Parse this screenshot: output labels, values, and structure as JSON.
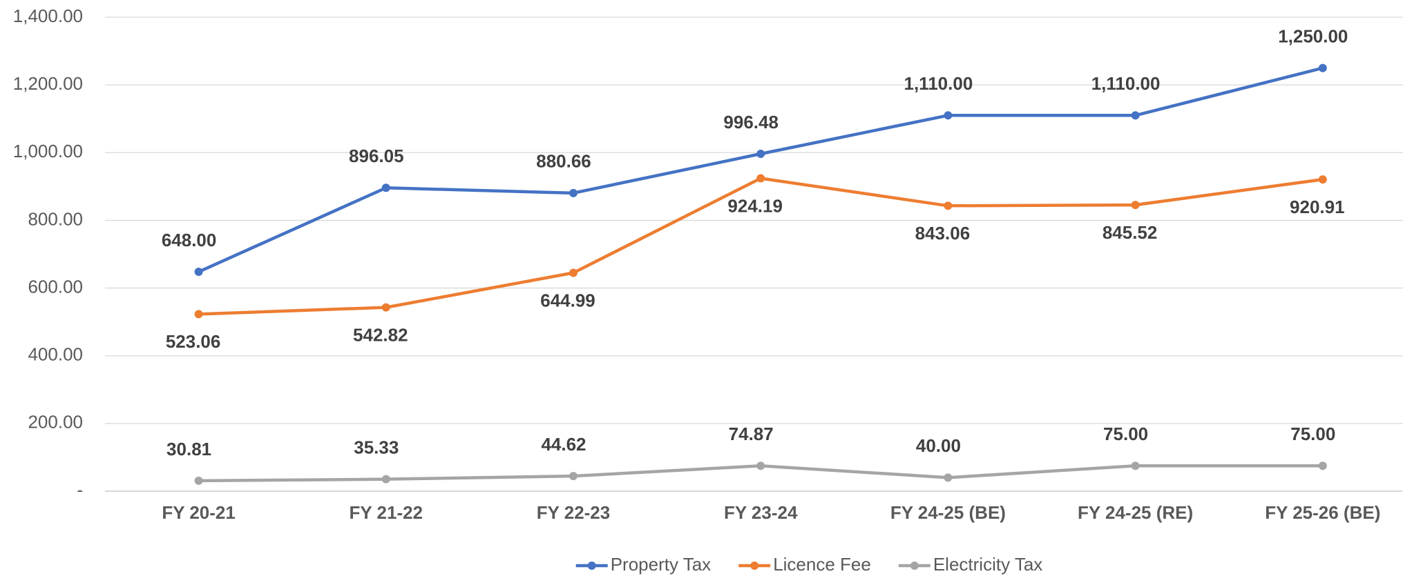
{
  "chart_data": {
    "type": "line",
    "categories": [
      "FY 20-21",
      "FY 21-22",
      "FY 22-23",
      "FY 23-24",
      "FY 24-25 (BE)",
      "FY 24-25 (RE)",
      "FY 25-26 (BE)"
    ],
    "series": [
      {
        "name": "Property Tax",
        "color": "#4472c4",
        "values": [
          648,
          896.05,
          880.66,
          996.48,
          1110,
          1110,
          1250
        ],
        "value_labels": [
          "648.00",
          "896.05",
          "880.66",
          "996.48",
          "1,110.00",
          "1,110.00",
          "1,250.00"
        ]
      },
      {
        "name": "Licence Fee",
        "color": "#ed7d31",
        "values": [
          523.06,
          542.82,
          644.99,
          924.19,
          843.06,
          845.52,
          920.91
        ],
        "value_labels": [
          "523.06",
          "542.82",
          "644.99",
          "924.19",
          "843.06",
          "845.52",
          "920.91"
        ]
      },
      {
        "name": "Electricity Tax",
        "color": "#a5a5a5",
        "values": [
          30.81,
          35.33,
          44.62,
          74.87,
          40,
          75,
          75
        ],
        "value_labels": [
          "30.81",
          "35.33",
          "44.62",
          "74.87",
          "40.00",
          "75.00",
          "75.00"
        ]
      }
    ],
    "ylim": [
      0,
      1400
    ],
    "yticks": [
      {
        "value": 0,
        "label": "-"
      },
      {
        "value": 200,
        "label": "200.00"
      },
      {
        "value": 400,
        "label": "400.00"
      },
      {
        "value": 600,
        "label": "600.00"
      },
      {
        "value": 800,
        "label": "800.00"
      },
      {
        "value": 1000,
        "label": "1,000.00"
      },
      {
        "value": 1200,
        "label": "1,200.00"
      },
      {
        "value": 1400,
        "label": "1,400.00"
      }
    ],
    "grid": true,
    "legend": "bottom"
  }
}
